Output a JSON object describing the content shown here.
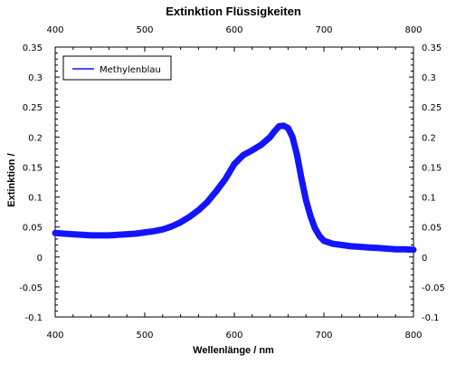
{
  "chart_data": {
    "type": "line",
    "title": "Extinktion Flüssigkeiten",
    "xlabel": "Wellenlänge / nm",
    "ylabel": "Extinktion /",
    "xlim": [
      400,
      800
    ],
    "ylim": [
      -0.1,
      0.35
    ],
    "x_ticks": [
      400,
      500,
      600,
      700,
      800
    ],
    "x_tick_labels": [
      "400",
      "500",
      "600",
      "700",
      "800"
    ],
    "y_ticks": [
      -0.1,
      -0.05,
      0,
      0.05,
      0.1,
      0.15,
      0.2,
      0.25,
      0.3,
      0.35
    ],
    "y_tick_labels": [
      "-0.1",
      "-0.05",
      "0",
      "0.05",
      "0.1",
      "0.15",
      "0.2",
      "0.25",
      "0.3",
      "0.35"
    ],
    "top_axis_labels": true,
    "right_axis_labels": true,
    "grid": false,
    "legend_position": "top-left",
    "series": [
      {
        "name": "Methylenblau",
        "color": "#1414ff",
        "x": [
          400,
          410,
          420,
          430,
          440,
          450,
          460,
          470,
          480,
          490,
          500,
          510,
          520,
          530,
          540,
          550,
          560,
          570,
          580,
          590,
          600,
          610,
          620,
          630,
          640,
          645,
          650,
          655,
          660,
          665,
          670,
          675,
          680,
          685,
          690,
          695,
          700,
          710,
          720,
          730,
          740,
          750,
          760,
          770,
          780,
          790,
          800
        ],
        "values": [
          0.04,
          0.039,
          0.038,
          0.037,
          0.036,
          0.036,
          0.036,
          0.037,
          0.038,
          0.039,
          0.041,
          0.043,
          0.046,
          0.051,
          0.058,
          0.067,
          0.078,
          0.092,
          0.11,
          0.13,
          0.155,
          0.17,
          0.178,
          0.187,
          0.2,
          0.21,
          0.218,
          0.219,
          0.215,
          0.2,
          0.17,
          0.13,
          0.095,
          0.068,
          0.048,
          0.035,
          0.027,
          0.022,
          0.02,
          0.018,
          0.017,
          0.016,
          0.015,
          0.014,
          0.013,
          0.013,
          0.012
        ]
      }
    ]
  }
}
